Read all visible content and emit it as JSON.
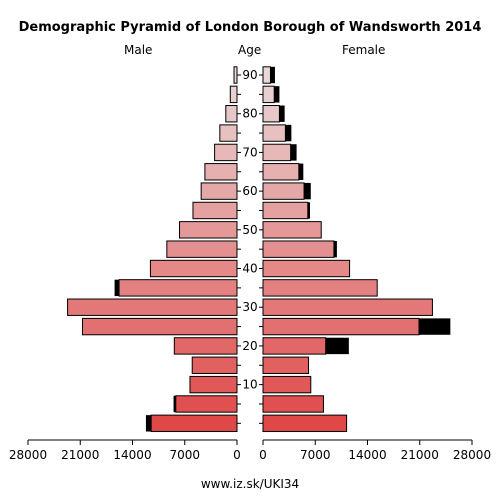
{
  "chart_data": {
    "type": "bar",
    "orientation": "horizontal-pyramid",
    "title": "Demographic Pyramid of London Borough of Wandsworth 2014",
    "left_label": "Male",
    "center_label": "Age",
    "right_label": "Female",
    "source": "www.iz.sk/UKI34",
    "age_ticks": [
      10,
      20,
      30,
      40,
      50,
      60,
      70,
      80,
      90
    ],
    "x_ticks_left": [
      "28000",
      "21000",
      "14000",
      "7000",
      "0"
    ],
    "x_ticks_right": [
      "0",
      "7000",
      "14000",
      "21000",
      "28000"
    ],
    "xlim": [
      0,
      28000
    ],
    "age_groups": [
      "0-4",
      "5-9",
      "10-14",
      "15-19",
      "20-24",
      "25-29",
      "30-34",
      "35-39",
      "40-44",
      "45-49",
      "50-54",
      "55-59",
      "60-64",
      "65-69",
      "70-74",
      "75-79",
      "80-84",
      "85-89",
      "90+"
    ],
    "series": [
      {
        "name": "Male",
        "values": [
          11500,
          8200,
          6300,
          6000,
          8400,
          20700,
          22700,
          15800,
          11600,
          9400,
          7700,
          5900,
          4800,
          4300,
          3000,
          2300,
          1500,
          900,
          400
        ]
      },
      {
        "name": "Male excess",
        "values": [
          700,
          300,
          0,
          0,
          0,
          0,
          0,
          600,
          0,
          0,
          0,
          0,
          0,
          0,
          0,
          0,
          0,
          0,
          0
        ]
      },
      {
        "name": "Female",
        "values": [
          11200,
          8100,
          6400,
          6100,
          8400,
          20900,
          22700,
          15300,
          11600,
          9500,
          7800,
          6000,
          5500,
          4800,
          3700,
          3000,
          2200,
          1500,
          1000
        ]
      },
      {
        "name": "Female excess",
        "values": [
          0,
          0,
          0,
          0,
          3100,
          4200,
          0,
          0,
          0,
          400,
          0,
          300,
          900,
          600,
          800,
          800,
          700,
          700,
          600
        ]
      }
    ],
    "colors": {
      "young": "#e04848",
      "old": "#e8d8d8",
      "excess": "#000000",
      "outline": "#000000"
    }
  }
}
